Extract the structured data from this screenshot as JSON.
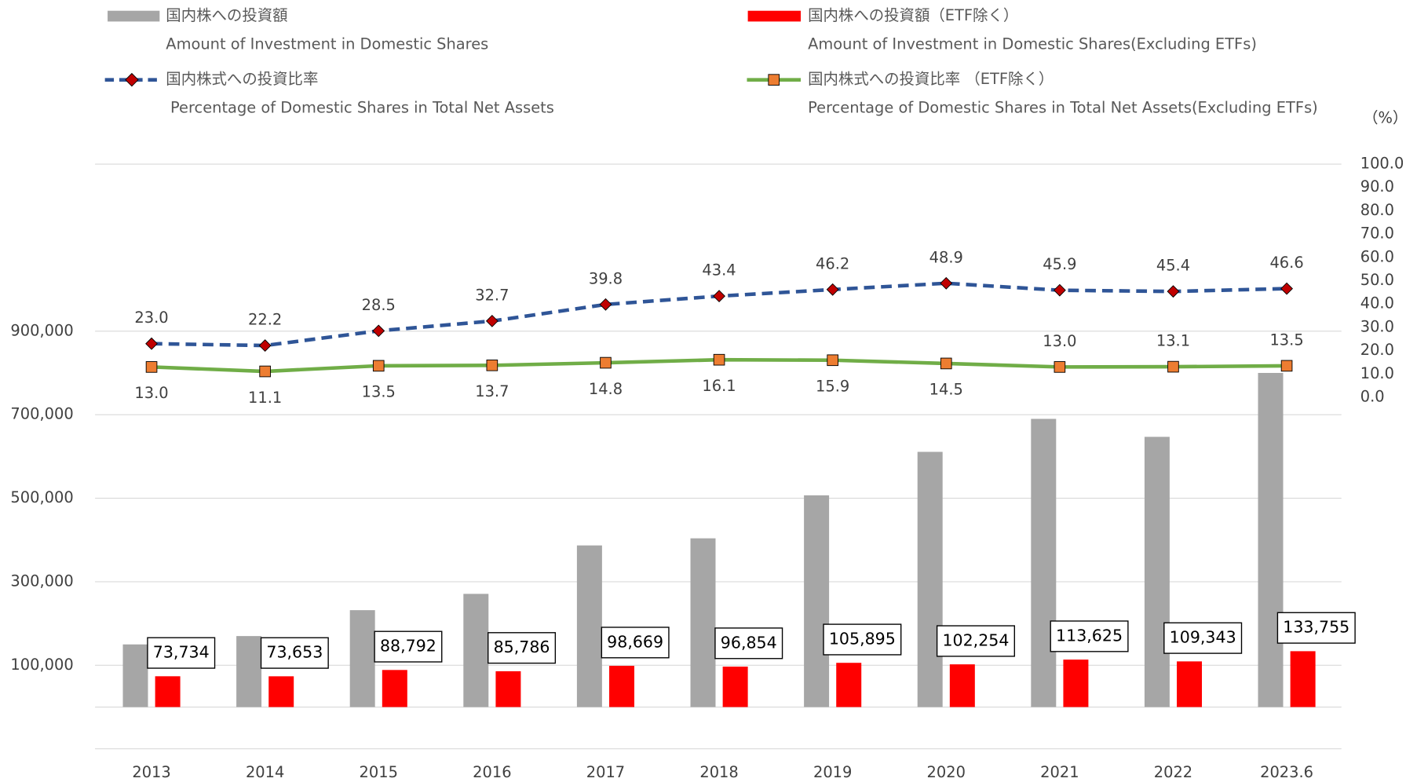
{
  "chart_data": {
    "type": "bar_line_combo",
    "categories": [
      "2013",
      "2014",
      "2015",
      "2016",
      "2017",
      "2018",
      "2019",
      "2020",
      "2021",
      "2022",
      "2023.6"
    ],
    "ylim": [
      -100000,
      1300000
    ],
    "yticks": [
      {
        "value": 100000,
        "label": "100,000"
      },
      {
        "value": 300000,
        "label": "300,000"
      },
      {
        "value": 500000,
        "label": "500,000"
      },
      {
        "value": 700000,
        "label": "700,000"
      },
      {
        "value": 900000,
        "label": "900,000"
      }
    ],
    "y2lim": [
      0,
      100
    ],
    "y2label": "（%）",
    "y2ticks": [
      {
        "value": 0,
        "label": "0.0"
      },
      {
        "value": 10,
        "label": "10.0"
      },
      {
        "value": 20,
        "label": "20.0"
      },
      {
        "value": 30,
        "label": "30.0"
      },
      {
        "value": 40,
        "label": "40.0"
      },
      {
        "value": 50,
        "label": "50.0"
      },
      {
        "value": 60,
        "label": "60.0"
      },
      {
        "value": 70,
        "label": "70.0"
      },
      {
        "value": 80,
        "label": "80.0"
      },
      {
        "value": 90,
        "label": "90.0"
      },
      {
        "value": 100,
        "label": "100.0"
      }
    ],
    "grid": true,
    "series": [
      {
        "name": "国内株への投資額",
        "name_en": "Amount of Investment in Domestic Shares",
        "kind": "bar",
        "color": "#a6a6a6",
        "values": [
          150000,
          170000,
          232000,
          271000,
          387000,
          404000,
          507000,
          611000,
          690000,
          647000,
          800000
        ]
      },
      {
        "name": "国内株への投資額（ETF除く）",
        "name_en": "Amount of Investment in Domestic Shares(Excluding ETFs)",
        "kind": "bar",
        "color": "#ff0000",
        "values": [
          73734,
          73653,
          88792,
          85786,
          98669,
          96854,
          105895,
          102254,
          113625,
          109343,
          133755
        ],
        "value_labels": [
          "73,734",
          "73,653",
          "88,792",
          "85,786",
          "98,669",
          "96,854",
          "105,895",
          "102,254",
          "113,625",
          "109,343",
          "133,755"
        ]
      },
      {
        "name": "国内株式への投資比率",
        "name_en": "Percentage of Domestic Shares in Total Net Assets",
        "kind": "line",
        "axis": "y2",
        "color": "#2f5597",
        "marker_color": "#c00000",
        "dashed": true,
        "values": [
          23.0,
          22.2,
          28.5,
          32.7,
          39.8,
          43.4,
          46.2,
          48.9,
          45.9,
          45.4,
          46.6
        ],
        "value_labels": [
          "23.0",
          "22.2",
          "28.5",
          "32.7",
          "39.8",
          "43.4",
          "46.2",
          "48.9",
          "45.9",
          "45.4",
          "46.6"
        ]
      },
      {
        "name": "国内株式への投資比率 （ETF除く）",
        "name_en": "Percentage of Domestic Shares in Total Net Assets(Excluding ETFs)",
        "kind": "line",
        "axis": "y2",
        "color": "#70ad47",
        "marker_color": "#ed7d31",
        "dashed": false,
        "values": [
          13.0,
          11.1,
          13.5,
          13.7,
          14.8,
          16.1,
          15.9,
          14.5,
          13.0,
          13.1,
          13.5
        ],
        "value_labels": [
          "13.0",
          "11.1",
          "13.5",
          "13.7",
          "14.8",
          "16.1",
          "15.9",
          "14.5",
          "13.0",
          "13.1",
          "13.5"
        ]
      }
    ]
  }
}
